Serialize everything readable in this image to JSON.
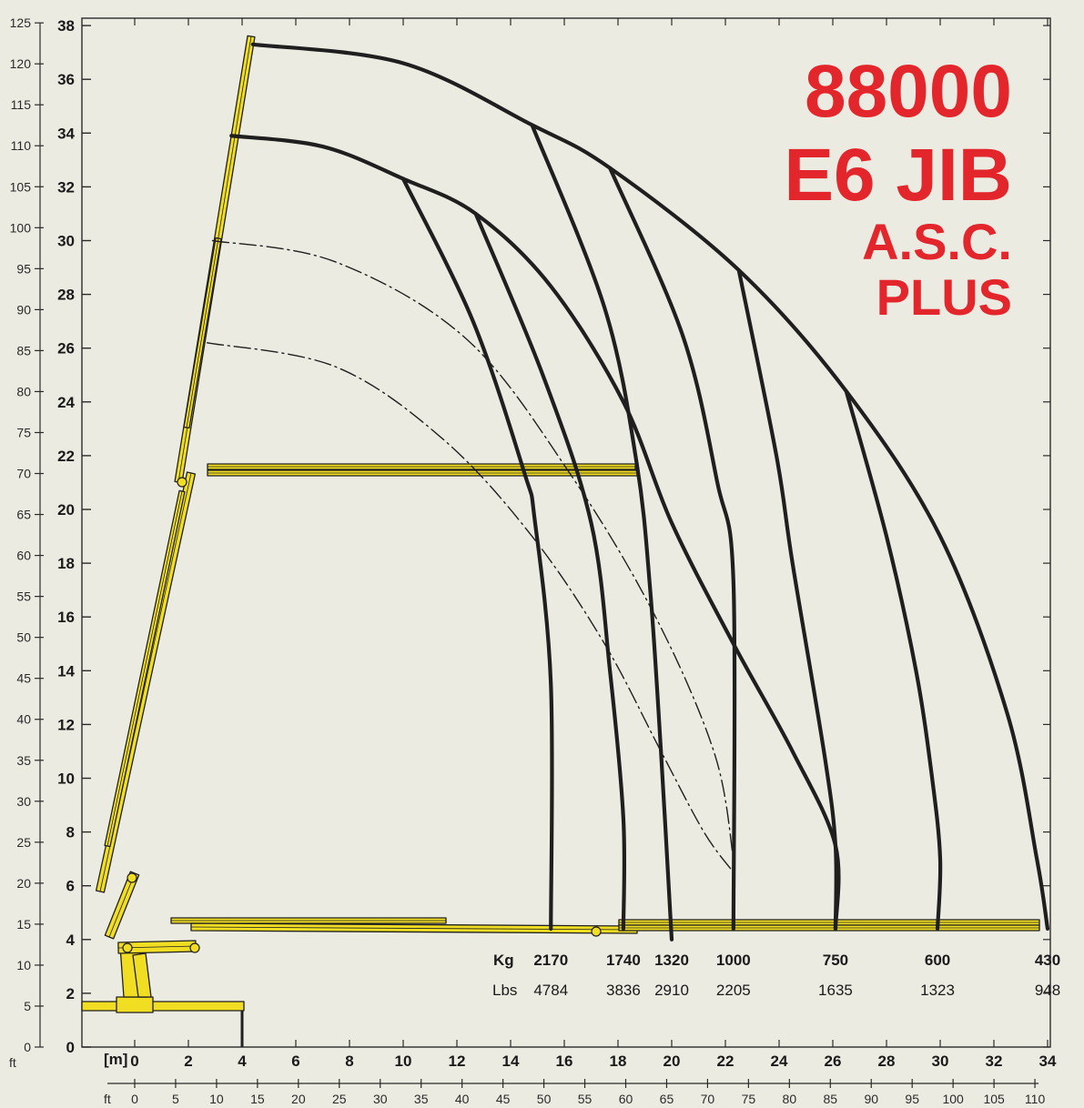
{
  "chart_data": {
    "type": "line",
    "colors": {
      "background": "#ecebe2",
      "curves": "#1f1f1f",
      "crane": "#f1de22",
      "title": "#e3262b"
    },
    "title_lines": [
      "88000",
      "E6 JIB",
      "A.S.C.",
      "PLUS"
    ],
    "x_axis_m": {
      "unit_label": "[m]",
      "range": [
        -1,
        34
      ],
      "ticks": [
        0,
        2,
        4,
        6,
        8,
        10,
        12,
        14,
        16,
        18,
        20,
        22,
        24,
        26,
        28,
        30,
        32,
        34
      ]
    },
    "x_axis_ft": {
      "unit_label": "ft",
      "ticks": [
        0,
        5,
        10,
        15,
        20,
        25,
        30,
        35,
        40,
        45,
        50,
        55,
        60,
        65,
        70,
        75,
        80,
        85,
        90,
        95,
        100,
        105,
        110
      ]
    },
    "y_axis_m": {
      "range": [
        0,
        38
      ],
      "ticks": [
        0,
        2,
        4,
        6,
        8,
        10,
        12,
        14,
        16,
        18,
        20,
        22,
        24,
        26,
        28,
        30,
        32,
        34,
        36,
        38
      ]
    },
    "y_axis_ft": {
      "unit_label": "ft",
      "ticks": [
        0,
        5,
        10,
        15,
        20,
        25,
        30,
        35,
        40,
        45,
        50,
        55,
        60,
        65,
        70,
        75,
        80,
        85,
        90,
        95,
        100,
        105,
        110,
        115,
        120,
        125
      ]
    },
    "grid": false,
    "load_table": {
      "kg_label": "Kg",
      "lbs_label": "Lbs",
      "columns": [
        {
          "reach_m": 15.5,
          "kg": "2170",
          "lbs": "4784"
        },
        {
          "reach_m": 18.2,
          "kg": "1740",
          "lbs": "3836"
        },
        {
          "reach_m": 20.0,
          "kg": "1320",
          "lbs": "2910"
        },
        {
          "reach_m": 22.3,
          "kg": "1000",
          "lbs": "2205"
        },
        {
          "reach_m": 26.1,
          "kg": "750",
          "lbs": "1635"
        },
        {
          "reach_m": 29.9,
          "kg": "600",
          "lbs": "1323"
        },
        {
          "reach_m": 34.0,
          "kg": "430",
          "lbs": "948"
        }
      ]
    },
    "series": [
      {
        "style": "solid",
        "points": [
          [
            4.4,
            37.3
          ],
          [
            10,
            36.6
          ],
          [
            14.8,
            34.3
          ],
          [
            17.7,
            32.7
          ],
          [
            22.5,
            28.9
          ],
          [
            26.5,
            24.4
          ],
          [
            30,
            19
          ],
          [
            32.5,
            12.4
          ],
          [
            33.6,
            7
          ],
          [
            34.0,
            4.4
          ]
        ]
      },
      {
        "style": "solid",
        "points": [
          [
            3.6,
            33.9
          ],
          [
            7,
            33.5
          ],
          [
            10,
            32.3
          ],
          [
            12.7,
            31
          ],
          [
            15.5,
            28.3
          ],
          [
            18.2,
            24
          ],
          [
            20,
            19.5
          ],
          [
            22.3,
            15
          ],
          [
            24.5,
            11
          ],
          [
            26.1,
            7.5
          ],
          [
            26.1,
            4.4
          ]
        ]
      },
      {
        "style": "dashdot",
        "points": [
          [
            2.9,
            30
          ],
          [
            7.5,
            29.2
          ],
          [
            12.4,
            26.3
          ],
          [
            16.3,
            21.2
          ],
          [
            19.4,
            16
          ],
          [
            21.6,
            10.9
          ],
          [
            22.3,
            7
          ]
        ]
      },
      {
        "style": "dashdot",
        "points": [
          [
            2.7,
            26.2
          ],
          [
            7.5,
            25.3
          ],
          [
            11.5,
            22.6
          ],
          [
            14.8,
            19
          ],
          [
            17.5,
            15
          ],
          [
            19.6,
            11
          ],
          [
            21.2,
            8
          ],
          [
            22.3,
            6.5
          ]
        ]
      },
      {
        "style": "solid",
        "points": [
          [
            10,
            32.3
          ],
          [
            12.6,
            27
          ],
          [
            14.5,
            21.4
          ],
          [
            14.9,
            19.6
          ],
          [
            15.5,
            13.5
          ],
          [
            15.5,
            4.4
          ]
        ]
      },
      {
        "style": "solid",
        "points": [
          [
            12.7,
            31
          ],
          [
            15.2,
            25
          ],
          [
            17,
            19.5
          ],
          [
            17.7,
            14
          ],
          [
            18.2,
            8.5
          ],
          [
            18.2,
            4.4
          ]
        ]
      },
      {
        "style": "solid",
        "points": [
          [
            14.8,
            34.3
          ],
          [
            17.5,
            27.5
          ],
          [
            18.7,
            21.7
          ],
          [
            19.2,
            17
          ],
          [
            19.6,
            11
          ],
          [
            20,
            4
          ]
        ]
      },
      {
        "style": "solid",
        "points": [
          [
            17.7,
            32.7
          ],
          [
            20.4,
            26.5
          ],
          [
            21.7,
            21
          ],
          [
            22.3,
            17.3
          ],
          [
            22.3,
            4.4
          ]
        ]
      },
      {
        "style": "solid",
        "points": [
          [
            22.5,
            28.9
          ],
          [
            23.9,
            22
          ],
          [
            24.5,
            18
          ],
          [
            25.7,
            10.8
          ],
          [
            26.1,
            7.5
          ],
          [
            26.1,
            4.4
          ]
        ]
      },
      {
        "style": "solid",
        "points": [
          [
            26.5,
            24.4
          ],
          [
            28,
            19
          ],
          [
            29.1,
            14
          ],
          [
            29.7,
            10
          ],
          [
            30,
            7
          ],
          [
            29.9,
            4.4
          ]
        ]
      }
    ]
  }
}
